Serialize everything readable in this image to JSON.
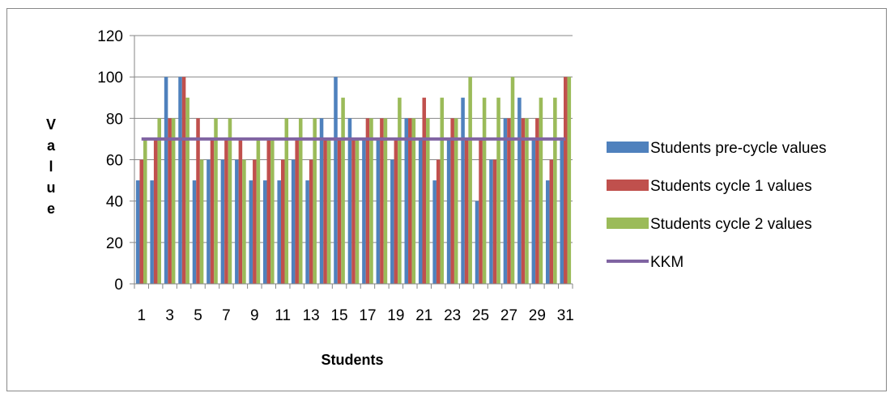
{
  "chart_data": {
    "type": "bar",
    "xlabel": "Students",
    "ylabel_letters": [
      "V",
      "a",
      "l",
      "u",
      "e"
    ],
    "ylim": [
      0,
      120
    ],
    "yticks": [
      0,
      20,
      40,
      60,
      80,
      100,
      120
    ],
    "categories": [
      1,
      2,
      3,
      4,
      5,
      6,
      7,
      8,
      9,
      10,
      11,
      12,
      13,
      14,
      15,
      16,
      17,
      18,
      19,
      20,
      21,
      22,
      23,
      24,
      25,
      26,
      27,
      28,
      29,
      30,
      31
    ],
    "shown_tick_labels": [
      "1",
      "3",
      "5",
      "7",
      "9",
      "11",
      "13",
      "15",
      "17",
      "19",
      "21",
      "23",
      "25",
      "27",
      "29",
      "31"
    ],
    "grid": true,
    "legend_position": "right",
    "series": [
      {
        "name": "Students pre-cycle values",
        "color": "#4F81BD",
        "values": [
          50,
          50,
          100,
          100,
          50,
          60,
          60,
          60,
          50,
          50,
          50,
          60,
          50,
          80,
          100,
          80,
          70,
          70,
          60,
          80,
          70,
          50,
          70,
          90,
          40,
          60,
          80,
          90,
          70,
          50,
          70
        ]
      },
      {
        "name": "Students cycle 1 values",
        "color": "#C0504D",
        "values": [
          60,
          70,
          80,
          100,
          80,
          70,
          70,
          70,
          60,
          70,
          60,
          70,
          60,
          70,
          70,
          70,
          80,
          80,
          70,
          80,
          90,
          60,
          80,
          70,
          70,
          60,
          80,
          80,
          80,
          60,
          100
        ]
      },
      {
        "name": "Students cycle 2 values",
        "color": "#9BBB59",
        "values": [
          70,
          80,
          80,
          90,
          60,
          80,
          80,
          60,
          70,
          70,
          80,
          80,
          80,
          70,
          90,
          70,
          80,
          80,
          90,
          80,
          80,
          90,
          80,
          100,
          90,
          90,
          100,
          80,
          90,
          90,
          100
        ]
      }
    ],
    "reference_line": {
      "name": "KKM",
      "value": 70,
      "color": "#8064A2"
    }
  }
}
